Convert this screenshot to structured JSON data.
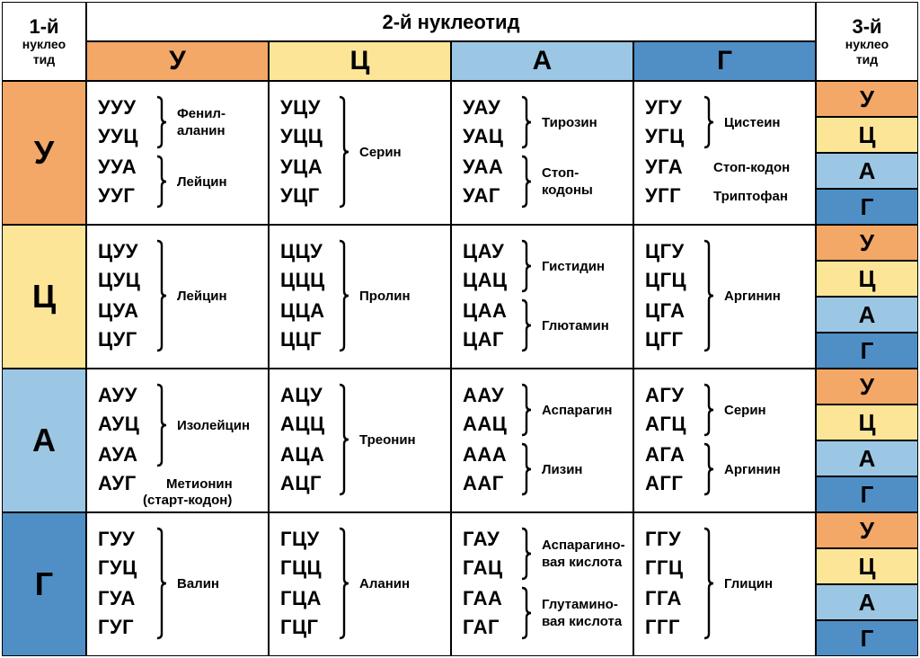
{
  "colors": {
    "U": "#f3a867",
    "C": "#fde597",
    "A": "#9cc7e4",
    "G": "#4f8fc6",
    "grid": "#000000"
  },
  "header": {
    "first_line1": "1-й",
    "first_line2": "нуклео",
    "first_line3": "тид",
    "second": "2-й нуклеотид",
    "third_line1": "3-й",
    "third_line2": "нуклео",
    "third_line3": "тид"
  },
  "bases": [
    "У",
    "Ц",
    "А",
    "Г"
  ],
  "cells": [
    [
      {
        "codons": [
          "УУУ",
          "УУЦ",
          "УУА",
          "УУГ"
        ],
        "groups": [
          {
            "brace": [
              0,
              1
            ],
            "lines": [
              "Фенил-",
              "аланин"
            ]
          },
          {
            "brace": [
              2,
              3
            ],
            "lines": [
              "Лейцин"
            ]
          }
        ]
      },
      {
        "codons": [
          "УЦУ",
          "УЦЦ",
          "УЦА",
          "УЦГ"
        ],
        "groups": [
          {
            "brace": [
              0,
              3
            ],
            "lines": [
              "Серин"
            ]
          }
        ]
      },
      {
        "codons": [
          "УАУ",
          "УАЦ",
          "УАА",
          "УАГ"
        ],
        "groups": [
          {
            "brace": [
              0,
              1
            ],
            "lines": [
              "Тирозин"
            ]
          },
          {
            "brace": [
              2,
              3
            ],
            "lines": [
              "Стоп-",
              "кодоны"
            ]
          }
        ]
      },
      {
        "codons": [
          "УГУ",
          "УГЦ",
          "УГА",
          "УГГ"
        ],
        "groups": [
          {
            "brace": [
              0,
              1
            ],
            "lines": [
              "Цистеин"
            ]
          },
          {
            "single": 2,
            "lines": [
              "Стоп-кодон"
            ]
          },
          {
            "single": 3,
            "lines": [
              "Триптофан"
            ]
          }
        ]
      }
    ],
    [
      {
        "codons": [
          "ЦУУ",
          "ЦУЦ",
          "ЦУА",
          "ЦУГ"
        ],
        "groups": [
          {
            "brace": [
              0,
              3
            ],
            "lines": [
              "Лейцин"
            ]
          }
        ]
      },
      {
        "codons": [
          "ЦЦУ",
          "ЦЦЦ",
          "ЦЦА",
          "ЦЦГ"
        ],
        "groups": [
          {
            "brace": [
              0,
              3
            ],
            "lines": [
              "Пролин"
            ]
          }
        ]
      },
      {
        "codons": [
          "ЦАУ",
          "ЦАЦ",
          "ЦАА",
          "ЦАГ"
        ],
        "groups": [
          {
            "brace": [
              0,
              1
            ],
            "lines": [
              "Гистидин"
            ]
          },
          {
            "brace": [
              2,
              3
            ],
            "lines": [
              "Глютамин"
            ]
          }
        ]
      },
      {
        "codons": [
          "ЦГУ",
          "ЦГЦ",
          "ЦГА",
          "ЦГГ"
        ],
        "groups": [
          {
            "brace": [
              0,
              3
            ],
            "lines": [
              "Аргинин"
            ]
          }
        ]
      }
    ],
    [
      {
        "codons": [
          "АУУ",
          "АУЦ",
          "АУА",
          "АУГ"
        ],
        "groups": [
          {
            "brace": [
              0,
              2
            ],
            "lines": [
              "Изолейцин"
            ]
          },
          {
            "single": 3,
            "lines": [
              "Метионин"
            ],
            "extra": "(старт-кодон)"
          }
        ]
      },
      {
        "codons": [
          "АЦУ",
          "АЦЦ",
          "АЦА",
          "АЦГ"
        ],
        "groups": [
          {
            "brace": [
              0,
              3
            ],
            "lines": [
              "Треонин"
            ]
          }
        ]
      },
      {
        "codons": [
          "ААУ",
          "ААЦ",
          "ААА",
          "ААГ"
        ],
        "groups": [
          {
            "brace": [
              0,
              1
            ],
            "lines": [
              "Аспарагин"
            ]
          },
          {
            "brace": [
              2,
              3
            ],
            "lines": [
              "Лизин"
            ]
          }
        ]
      },
      {
        "codons": [
          "АГУ",
          "АГЦ",
          "АГА",
          "АГГ"
        ],
        "groups": [
          {
            "brace": [
              0,
              1
            ],
            "lines": [
              "Серин"
            ]
          },
          {
            "brace": [
              2,
              3
            ],
            "lines": [
              "Аргинин"
            ]
          }
        ]
      }
    ],
    [
      {
        "codons": [
          "ГУУ",
          "ГУЦ",
          "ГУА",
          "ГУГ"
        ],
        "groups": [
          {
            "brace": [
              0,
              3
            ],
            "lines": [
              "Валин"
            ]
          }
        ]
      },
      {
        "codons": [
          "ГЦУ",
          "ГЦЦ",
          "ГЦА",
          "ГЦГ"
        ],
        "groups": [
          {
            "brace": [
              0,
              3
            ],
            "lines": [
              "Аланин"
            ]
          }
        ]
      },
      {
        "codons": [
          "ГАУ",
          "ГАЦ",
          "ГАА",
          "ГАГ"
        ],
        "groups": [
          {
            "brace": [
              0,
              1
            ],
            "lines": [
              "Аспарагино-",
              "вая кислота"
            ]
          },
          {
            "brace": [
              2,
              3
            ],
            "lines": [
              "Глутамино-",
              "вая кислота"
            ]
          }
        ]
      },
      {
        "codons": [
          "ГГУ",
          "ГГЦ",
          "ГГА",
          "ГГГ"
        ],
        "groups": [
          {
            "brace": [
              0,
              3
            ],
            "lines": [
              "Глицин"
            ]
          }
        ]
      }
    ]
  ]
}
